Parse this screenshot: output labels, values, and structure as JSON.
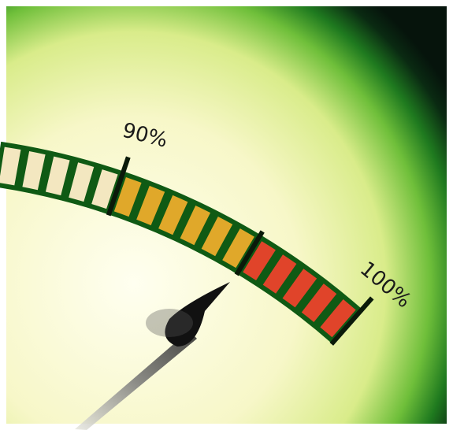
{
  "gauge": {
    "labels": [
      "90%",
      "100%"
    ]
  }
}
